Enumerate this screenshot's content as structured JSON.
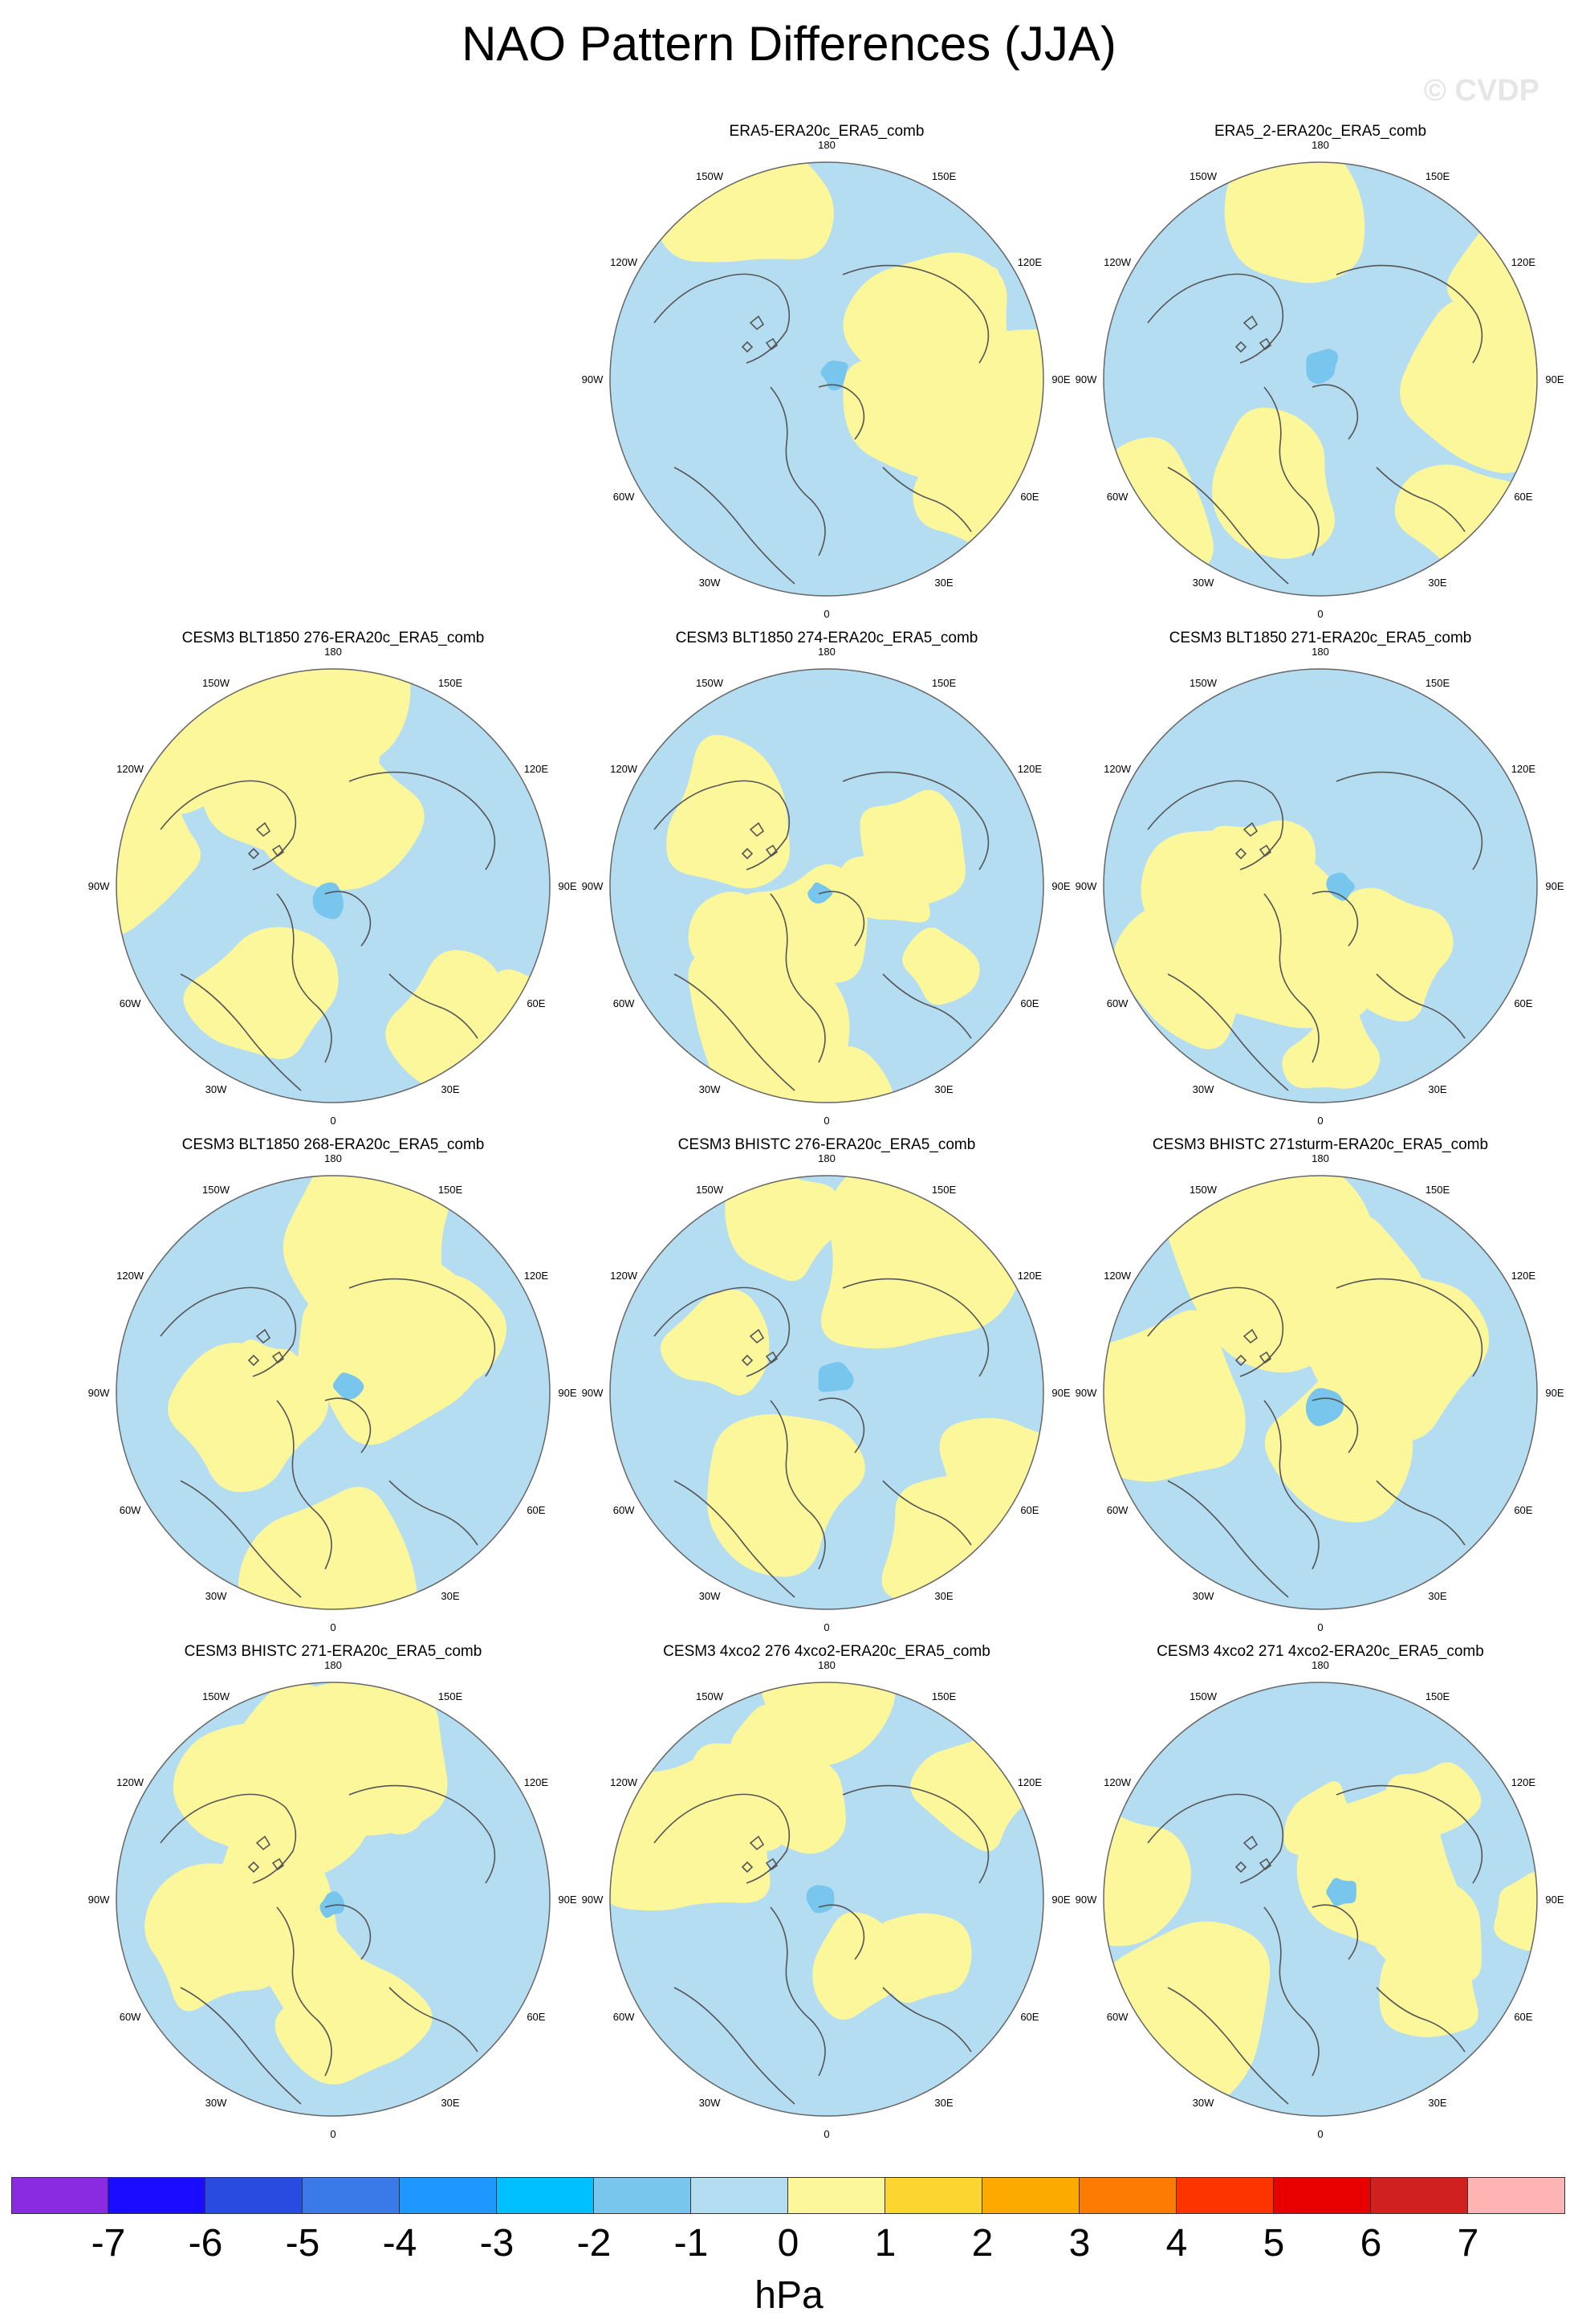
{
  "title": "NAO Pattern Differences (JJA)",
  "watermark": "© CVDP",
  "colors": {
    "ocean_blue": "#b5ddf1",
    "positive_yellow": "#fdf79c",
    "negative_blue": "#78c6ee",
    "coast": "#555555"
  },
  "longitude_labels": [
    "180",
    "150E",
    "120E",
    "90E",
    "60E",
    "30E",
    "0",
    "30W",
    "60W",
    "90W",
    "120W",
    "150W"
  ],
  "panels": [
    {
      "title": "ERA5-ERA20c_ERA5_comb"
    },
    {
      "title": "ERA5_2-ERA20c_ERA5_comb"
    },
    {
      "title": "CESM3 BLT1850 276-ERA20c_ERA5_comb"
    },
    {
      "title": "CESM3 BLT1850 274-ERA20c_ERA5_comb"
    },
    {
      "title": "CESM3 BLT1850 271-ERA20c_ERA5_comb"
    },
    {
      "title": "CESM3 BLT1850 268-ERA20c_ERA5_comb"
    },
    {
      "title": "CESM3 BHISTC 276-ERA20c_ERA5_comb"
    },
    {
      "title": "CESM3 BHISTC 271sturm-ERA20c_ERA5_comb"
    },
    {
      "title": "CESM3 BHISTC 271-ERA20c_ERA5_comb"
    },
    {
      "title": "CESM3 4xco2 276 4xco2-ERA20c_ERA5_comb"
    },
    {
      "title": "CESM3 4xco2 271 4xco2-ERA20c_ERA5_comb"
    }
  ],
  "colorbar": {
    "units": "hPa",
    "labels": [
      "-7",
      "-6",
      "-5",
      "-4",
      "-3",
      "-2",
      "-1",
      "0",
      "1",
      "2",
      "3",
      "4",
      "5",
      "6",
      "7"
    ],
    "colors": [
      "#8a2be2",
      "#1a0dff",
      "#2a4be0",
      "#3a7ae8",
      "#1e98ff",
      "#00c0ff",
      "#78c6ee",
      "#b5ddf1",
      "#fdf79c",
      "#fdd530",
      "#fdaa00",
      "#fd7c00",
      "#fd3300",
      "#e80000",
      "#d02020",
      "#ffb4b4"
    ]
  }
}
